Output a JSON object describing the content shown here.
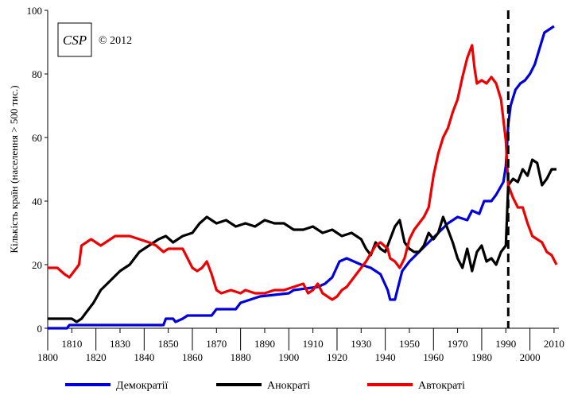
{
  "chart_data": {
    "type": "line",
    "title": "",
    "ylabel": "Кількість країн (населення > 500 тис.)",
    "xlabel": "",
    "xlim": [
      1800,
      2012
    ],
    "ylim": [
      0,
      100
    ],
    "grid": false,
    "legend_position": "bottom",
    "x_ticks_top": [
      "1810",
      "1830",
      "1850",
      "1870",
      "1890",
      "1910",
      "1930",
      "1950",
      "1970",
      "1990",
      "2010"
    ],
    "x_ticks_bottom": [
      "1800",
      "1820",
      "1840",
      "1860",
      "1880",
      "1900",
      "1920",
      "1940",
      "1960",
      "1980",
      "2000"
    ],
    "y_ticks": [
      "0",
      "20",
      "40",
      "60",
      "80",
      "100"
    ],
    "vline": {
      "x": 1991,
      "style": "dashed"
    },
    "logo": {
      "text": "CSP",
      "copyright": "© 2012"
    },
    "series": [
      {
        "name": "Демократії",
        "color": "#0000dd",
        "points": [
          [
            1800,
            0
          ],
          [
            1808,
            0
          ],
          [
            1809,
            1
          ],
          [
            1848,
            1
          ],
          [
            1849,
            3
          ],
          [
            1852,
            3
          ],
          [
            1853,
            2
          ],
          [
            1856,
            3
          ],
          [
            1858,
            4
          ],
          [
            1868,
            4
          ],
          [
            1870,
            6
          ],
          [
            1878,
            6
          ],
          [
            1880,
            8
          ],
          [
            1884,
            9
          ],
          [
            1888,
            10
          ],
          [
            1900,
            11
          ],
          [
            1902,
            12
          ],
          [
            1912,
            13
          ],
          [
            1915,
            14
          ],
          [
            1918,
            16
          ],
          [
            1921,
            21
          ],
          [
            1924,
            22
          ],
          [
            1930,
            20
          ],
          [
            1934,
            19
          ],
          [
            1938,
            17
          ],
          [
            1941,
            12
          ],
          [
            1942,
            9
          ],
          [
            1944,
            9
          ],
          [
            1945,
            12
          ],
          [
            1947,
            18
          ],
          [
            1950,
            21
          ],
          [
            1954,
            24
          ],
          [
            1958,
            27
          ],
          [
            1962,
            30
          ],
          [
            1966,
            33
          ],
          [
            1970,
            35
          ],
          [
            1974,
            34
          ],
          [
            1976,
            37
          ],
          [
            1979,
            36
          ],
          [
            1981,
            40
          ],
          [
            1984,
            40
          ],
          [
            1986,
            42
          ],
          [
            1989,
            46
          ],
          [
            1990,
            51
          ],
          [
            1991,
            64
          ],
          [
            1992,
            70
          ],
          [
            1994,
            75
          ],
          [
            1996,
            77
          ],
          [
            1998,
            78
          ],
          [
            2000,
            80
          ],
          [
            2002,
            83
          ],
          [
            2004,
            88
          ],
          [
            2006,
            93
          ],
          [
            2008,
            94
          ],
          [
            2010,
            95
          ]
        ]
      },
      {
        "name": "Анократі",
        "color": "#000000",
        "points": [
          [
            1800,
            3
          ],
          [
            1810,
            3
          ],
          [
            1812,
            2
          ],
          [
            1814,
            3
          ],
          [
            1816,
            5
          ],
          [
            1819,
            8
          ],
          [
            1822,
            12
          ],
          [
            1826,
            15
          ],
          [
            1830,
            18
          ],
          [
            1834,
            20
          ],
          [
            1838,
            24
          ],
          [
            1842,
            26
          ],
          [
            1846,
            28
          ],
          [
            1849,
            29
          ],
          [
            1852,
            27
          ],
          [
            1856,
            29
          ],
          [
            1860,
            30
          ],
          [
            1863,
            33
          ],
          [
            1866,
            35
          ],
          [
            1870,
            33
          ],
          [
            1874,
            34
          ],
          [
            1878,
            32
          ],
          [
            1882,
            33
          ],
          [
            1886,
            32
          ],
          [
            1890,
            34
          ],
          [
            1894,
            33
          ],
          [
            1898,
            33
          ],
          [
            1902,
            31
          ],
          [
            1906,
            31
          ],
          [
            1910,
            32
          ],
          [
            1914,
            30
          ],
          [
            1918,
            31
          ],
          [
            1922,
            29
          ],
          [
            1926,
            30
          ],
          [
            1930,
            28
          ],
          [
            1932,
            25
          ],
          [
            1934,
            23
          ],
          [
            1936,
            27
          ],
          [
            1938,
            25
          ],
          [
            1940,
            24
          ],
          [
            1942,
            28
          ],
          [
            1944,
            32
          ],
          [
            1946,
            34
          ],
          [
            1948,
            27
          ],
          [
            1950,
            25
          ],
          [
            1952,
            24
          ],
          [
            1954,
            24
          ],
          [
            1956,
            26
          ],
          [
            1958,
            30
          ],
          [
            1960,
            28
          ],
          [
            1962,
            30
          ],
          [
            1964,
            35
          ],
          [
            1966,
            31
          ],
          [
            1968,
            27
          ],
          [
            1970,
            22
          ],
          [
            1972,
            19
          ],
          [
            1974,
            25
          ],
          [
            1976,
            18
          ],
          [
            1978,
            24
          ],
          [
            1980,
            26
          ],
          [
            1982,
            21
          ],
          [
            1984,
            22
          ],
          [
            1986,
            20
          ],
          [
            1988,
            24
          ],
          [
            1990,
            26
          ],
          [
            1991,
            45
          ],
          [
            1993,
            47
          ],
          [
            1995,
            46
          ],
          [
            1997,
            50
          ],
          [
            1999,
            48
          ],
          [
            2001,
            53
          ],
          [
            2003,
            52
          ],
          [
            2005,
            45
          ],
          [
            2007,
            47
          ],
          [
            2009,
            50
          ],
          [
            2011,
            50
          ]
        ]
      },
      {
        "name": "Автократі",
        "color": "#ee0000",
        "points": [
          [
            1800,
            19
          ],
          [
            1804,
            19
          ],
          [
            1807,
            17
          ],
          [
            1809,
            16
          ],
          [
            1811,
            18
          ],
          [
            1813,
            20
          ],
          [
            1814,
            26
          ],
          [
            1816,
            27
          ],
          [
            1818,
            28
          ],
          [
            1820,
            27
          ],
          [
            1822,
            26
          ],
          [
            1824,
            27
          ],
          [
            1828,
            29
          ],
          [
            1834,
            29
          ],
          [
            1838,
            28
          ],
          [
            1842,
            27
          ],
          [
            1845,
            26
          ],
          [
            1848,
            24
          ],
          [
            1850,
            25
          ],
          [
            1856,
            25
          ],
          [
            1858,
            22
          ],
          [
            1860,
            19
          ],
          [
            1862,
            18
          ],
          [
            1864,
            19
          ],
          [
            1866,
            21
          ],
          [
            1868,
            17
          ],
          [
            1870,
            12
          ],
          [
            1872,
            11
          ],
          [
            1876,
            12
          ],
          [
            1880,
            11
          ],
          [
            1882,
            12
          ],
          [
            1886,
            11
          ],
          [
            1890,
            11
          ],
          [
            1894,
            12
          ],
          [
            1898,
            12
          ],
          [
            1902,
            13
          ],
          [
            1906,
            14
          ],
          [
            1908,
            11
          ],
          [
            1910,
            12
          ],
          [
            1912,
            14
          ],
          [
            1914,
            11
          ],
          [
            1916,
            10
          ],
          [
            1918,
            9
          ],
          [
            1920,
            10
          ],
          [
            1922,
            12
          ],
          [
            1924,
            13
          ],
          [
            1926,
            15
          ],
          [
            1928,
            17
          ],
          [
            1930,
            19
          ],
          [
            1932,
            21
          ],
          [
            1936,
            26
          ],
          [
            1938,
            27
          ],
          [
            1941,
            25
          ],
          [
            1942,
            22
          ],
          [
            1944,
            21
          ],
          [
            1946,
            19
          ],
          [
            1948,
            22
          ],
          [
            1950,
            28
          ],
          [
            1952,
            31
          ],
          [
            1954,
            33
          ],
          [
            1956,
            35
          ],
          [
            1958,
            38
          ],
          [
            1960,
            48
          ],
          [
            1962,
            55
          ],
          [
            1964,
            60
          ],
          [
            1966,
            63
          ],
          [
            1968,
            68
          ],
          [
            1970,
            72
          ],
          [
            1972,
            79
          ],
          [
            1974,
            85
          ],
          [
            1976,
            89
          ],
          [
            1977,
            82
          ],
          [
            1978,
            77
          ],
          [
            1980,
            78
          ],
          [
            1982,
            77
          ],
          [
            1984,
            79
          ],
          [
            1986,
            77
          ],
          [
            1988,
            72
          ],
          [
            1990,
            59
          ],
          [
            1991,
            45
          ],
          [
            1993,
            41
          ],
          [
            1995,
            38
          ],
          [
            1997,
            38
          ],
          [
            1999,
            33
          ],
          [
            2001,
            29
          ],
          [
            2003,
            28
          ],
          [
            2005,
            27
          ],
          [
            2007,
            24
          ],
          [
            2009,
            23
          ],
          [
            2011,
            20
          ]
        ]
      }
    ]
  }
}
